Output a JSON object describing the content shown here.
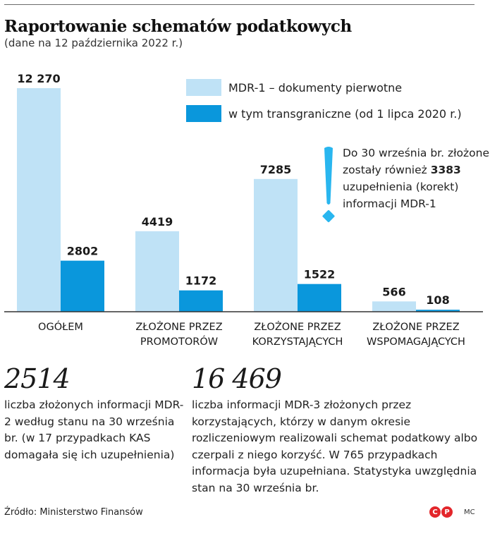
{
  "title": "Raportowanie schematów podatkowych",
  "subtitle": "(dane na 12 października 2022 r.)",
  "colors": {
    "primary": "#bfe2f6",
    "cross_border": "#0a97dc",
    "note_icon": "#29b6ef",
    "logo": "#e3262b"
  },
  "note": {
    "icon": "exclamation-icon",
    "before": "Do 30 września br. złożone zostały również ",
    "highlight": "3383",
    "after": " uzupełnienia (korekt) informacji MDR-1"
  },
  "stats": [
    {
      "number": "2514",
      "description": "liczba złożonych informacji MDR-2 według stanu na 30 września br. (w 17 przypadkach KAS domagała się ich uzupełnienia)"
    },
    {
      "number": "16 469",
      "description": "liczba informacji MDR-3 złożonych przez korzystających, którzy w danym okresie rozliczeniowym realizowali schemat podatkowy albo czerpali z niego korzyść. W 765 przypadkach informacja była uzupełniana. Statystyka uwzględnia stan na 30 września br."
    }
  ],
  "source": "Źródło: Ministerstwo Finansów",
  "credit": "MC",
  "logo_letters": [
    "C",
    "P"
  ],
  "chart_data": {
    "type": "bar",
    "categories": [
      [
        "OGÓŁEM"
      ],
      [
        "ZŁOŻONE PRZEZ",
        "PROMOTORÓW"
      ],
      [
        "ZŁOŻONE PRZEZ",
        "KORZYSTAJĄCYCH"
      ],
      [
        "ZŁOŻONE PRZEZ",
        "WSPOMAGAJĄCYCH"
      ]
    ],
    "series": [
      {
        "name": "MDR-1 – dokumenty pierwotne",
        "values": [
          12270,
          4419,
          7285,
          566
        ],
        "labels": [
          "12 270",
          "4419",
          "7285",
          "566"
        ],
        "color": "#bfe2f6"
      },
      {
        "name": "w tym transgraniczne (od 1 lipca 2020 r.)",
        "values": [
          2802,
          1172,
          1522,
          108
        ],
        "labels": [
          "2802",
          "1172",
          "1522",
          "108"
        ],
        "color": "#0a97dc"
      }
    ],
    "ylim": [
      0,
      12270
    ],
    "grid": false,
    "legend": "top-right"
  }
}
